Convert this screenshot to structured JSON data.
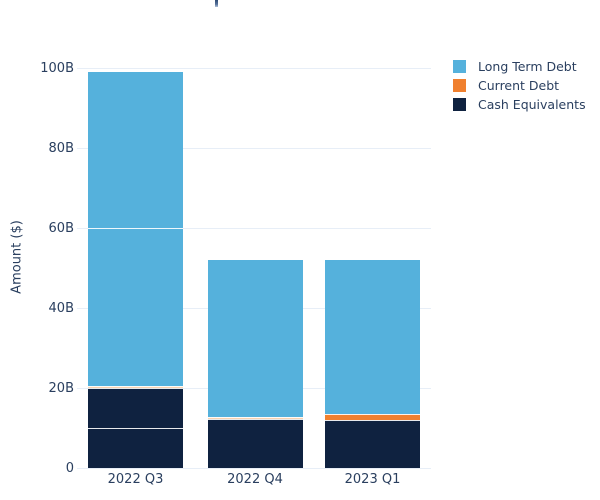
{
  "chart_data": {
    "type": "bar",
    "barmode": "stack",
    "ylabel": "Amount ($)",
    "ylim": [
      0,
      105
    ],
    "grid": true,
    "legend_position": "top-right",
    "categories": [
      "2022 Q3",
      "2022 Q4",
      "2023 Q1"
    ],
    "yticks": [
      {
        "value": 0,
        "label": "0"
      },
      {
        "value": 20,
        "label": "20B"
      },
      {
        "value": 40,
        "label": "40B"
      },
      {
        "value": 60,
        "label": "60B"
      },
      {
        "value": 80,
        "label": "80B"
      },
      {
        "value": 100,
        "label": "100B"
      }
    ],
    "series": [
      {
        "name": "Long Term Debt",
        "values": [
          78.5,
          39.2,
          38.5
        ]
      },
      {
        "name": "Current Debt",
        "values": [
          0.5,
          0.5,
          1.5
        ]
      },
      {
        "name": "Cash Equivalents",
        "values": [
          20,
          12.3,
          12
        ]
      }
    ],
    "colors": {
      "Long Term Debt": "#55b1dc",
      "Current Debt": "#f0802f",
      "Cash Equivalents": "#0f2240"
    },
    "muted_colors": {
      "Current Debt": "#f8d2b0"
    },
    "grid_color": "#e7eef7",
    "text_color": "#2a3f5f",
    "segment_seam_color": "rgba(255,255,255,0.9)",
    "bars": [
      {
        "category": "2022 Q3",
        "segments": [
          {
            "series": "Cash Equivalents",
            "value": 10
          },
          {
            "series": "Cash Equivalents",
            "value": 10
          },
          {
            "series": "Current Debt",
            "value": 0.5,
            "muted": true
          },
          {
            "series": "Long Term Debt",
            "value": 39.5
          },
          {
            "series": "Long Term Debt",
            "value": 39
          }
        ]
      },
      {
        "category": "2022 Q4",
        "segments": [
          {
            "series": "Cash Equivalents",
            "value": 12.3
          },
          {
            "series": "Current Debt",
            "value": 0.5,
            "muted": true
          },
          {
            "series": "Long Term Debt",
            "value": 39.2
          }
        ]
      },
      {
        "category": "2023 Q1",
        "segments": [
          {
            "series": "Cash Equivalents",
            "value": 12
          },
          {
            "series": "Current Debt",
            "value": 1.5
          },
          {
            "series": "Long Term Debt",
            "value": 38.5
          }
        ]
      }
    ],
    "legend": [
      {
        "label": "Long Term Debt",
        "color": "#55b1dc"
      },
      {
        "label": "Current Debt",
        "color": "#f0802f"
      },
      {
        "label": "Cash Equivalents",
        "color": "#0f2240"
      }
    ]
  }
}
